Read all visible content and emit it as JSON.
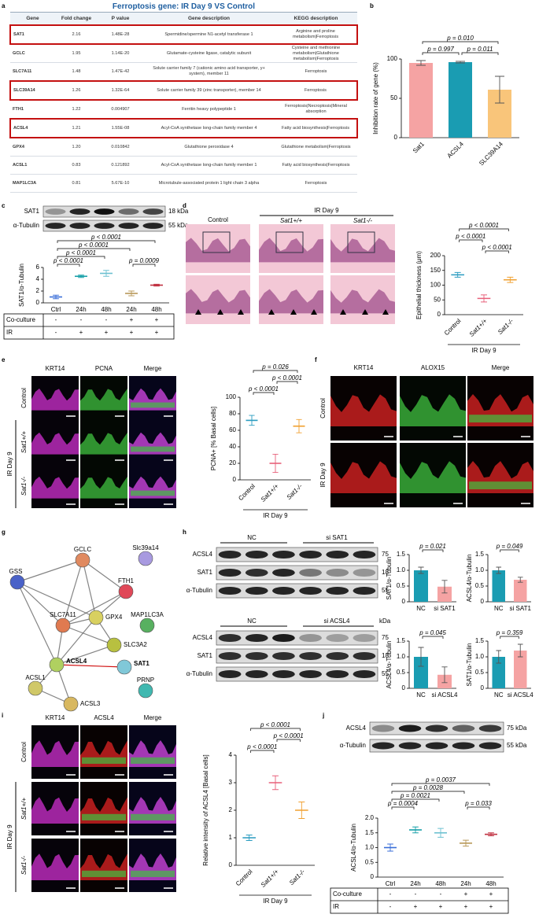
{
  "panel_letters": [
    "a",
    "b",
    "c",
    "d",
    "e",
    "f",
    "g",
    "h",
    "i",
    "j"
  ],
  "table": {
    "title": "Ferroptosis gene: IR Day 9 VS Control",
    "headers": [
      "Gene",
      "Fold change",
      "P value",
      "Gene description",
      "KEGG description"
    ],
    "rows": [
      [
        "SAT1",
        "2.16",
        "1.48E-28",
        "Spermidine/spermine N1-acetyl transferase 1",
        "Arginine and proline metabolism|Ferroptosis"
      ],
      [
        "GCLC",
        "1.95",
        "1.14E-20",
        "Glutamate-cysteine ligase, catalytic subunit",
        "Cysteine and methionine metabolism|Glutathione metabolism|Ferroptosis"
      ],
      [
        "SLC7A11",
        "1.48",
        "1.47E-42",
        "Solute carrier family 7 (cationic amino acid transporter, y+ system), member 11",
        "Ferroptosis"
      ],
      [
        "SLC39A14",
        "1.26",
        "1.32E-64",
        "Solute carrier family 39 (zinc transporter), member 14",
        "Ferroptosis"
      ],
      [
        "FTH1",
        "1.22",
        "0.004907",
        "Ferritin heavy polypeptide 1",
        "Ferroptosis|Necroptosis|Mineral absorption"
      ],
      [
        "ACSL4",
        "1.21",
        "1.55E-08",
        "Acyl-CoA synthetase long-chain family member 4",
        "Fatty acid biosynthesis|Ferroptosis"
      ],
      [
        "GPX4",
        "1.20",
        "0.010842",
        "Glutathione peroxidase 4",
        "Glutathione metabolism|Ferroptosis"
      ],
      [
        "ACSL1",
        "0.83",
        "0.121892",
        "Acyl-CoA synthetase long-chain family member 1",
        "Fatty acid biosynthesis|Ferroptosis"
      ],
      [
        "MAP1LC3A",
        "0.81",
        "5.67E-10",
        "Microtubule-associated protein 1 light chain 3 alpha",
        "Ferroptosis"
      ]
    ]
  },
  "chart_data": [
    {
      "type": "bar",
      "ylabel": "Inhibition rate of gene (%)",
      "categories": [
        "Sat1",
        "ACSL4",
        "SLC39A14"
      ],
      "values": [
        95,
        96,
        61
      ],
      "errors": [
        3,
        1,
        17
      ],
      "colors": [
        "#f5a3a3",
        "#1a9cb2",
        "#f9c57a"
      ],
      "ylim": [
        0,
        100
      ],
      "yticks": [
        0,
        50,
        100
      ],
      "annotations": [
        "p = 0.010",
        "p = 0.997",
        "p = 0.011"
      ]
    },
    {
      "type": "dot",
      "ylabel": "SAT1/α-Tubulin",
      "categories": [
        "Ctrl",
        "24h",
        "48h",
        "24h",
        "48h"
      ],
      "values": [
        1.0,
        4.5,
        5.0,
        1.6,
        3.0
      ],
      "errors": [
        0.3,
        0.2,
        0.5,
        0.4,
        0.15
      ],
      "colors": [
        "#3a6ed8",
        "#18a0a8",
        "#6cc0d0",
        "#b89858",
        "#c03040"
      ],
      "ylim": [
        0,
        6
      ],
      "yticks": [
        0,
        2,
        4,
        6
      ],
      "annotations": [
        "p < 0.0001",
        "p < 0.0001",
        "p < 0.0001",
        "p < 0.0001",
        "p = 0.0009"
      ],
      "conditions": [
        {
          "name": "Co-culture",
          "signs": [
            "-",
            "-",
            "-",
            "+",
            "+"
          ]
        },
        {
          "name": "IR",
          "signs": [
            "-",
            "+",
            "+",
            "+",
            "+"
          ]
        }
      ]
    },
    {
      "type": "dot",
      "ylabel": "Epithelial thickness (μm)",
      "categories": [
        "Control",
        "Sat1+/+",
        "Sat1-/-"
      ],
      "values": [
        135,
        55,
        118
      ],
      "errors": [
        8,
        12,
        9
      ],
      "colors": [
        "#2a9cc0",
        "#e8607a",
        "#f0a030"
      ],
      "ylim": [
        0,
        200
      ],
      "yticks": [
        0,
        50,
        100,
        150,
        200
      ],
      "annotations": [
        "p < 0.0001",
        "p < 0.0001",
        "p < 0.0001"
      ],
      "xgroup": "IR Day 9"
    },
    {
      "type": "dot",
      "ylabel": "PCNA+ [% Basal cells]",
      "categories": [
        "Control",
        "Sat1+/+",
        "Sat1-/-"
      ],
      "values": [
        72,
        20,
        65
      ],
      "errors": [
        6,
        11,
        8
      ],
      "colors": [
        "#2a9cc0",
        "#e8607a",
        "#f0a030"
      ],
      "ylim": [
        0,
        100
      ],
      "yticks": [
        0,
        20,
        40,
        60,
        80,
        100
      ],
      "annotations": [
        "p = 0.026",
        "p < 0.0001",
        "p < 0.0001"
      ],
      "xgroup": "IR Day 9"
    },
    {
      "type": "bar",
      "ylabel": "SAT1/α-Tubulin",
      "categories": [
        "NC",
        "si SAT1"
      ],
      "values": [
        1.0,
        0.48
      ],
      "errors": [
        0.1,
        0.2
      ],
      "colors": [
        "#1a9cb2",
        "#f5a3a3"
      ],
      "ylim": [
        0,
        1.5
      ],
      "yticks": [
        0,
        0.5,
        {
          "value": 1,
          "label": "1.0"
        },
        1.5
      ],
      "annotations": [
        "p = 0.021"
      ]
    },
    {
      "type": "bar",
      "ylabel": "ACSL4/α-Tubulin",
      "categories": [
        "NC",
        "si SAT1"
      ],
      "values": [
        1.0,
        0.7
      ],
      "errors": [
        0.1,
        0.08
      ],
      "colors": [
        "#1a9cb2",
        "#f5a3a3"
      ],
      "ylim": [
        0,
        1.5
      ],
      "yticks": [
        0,
        0.5,
        {
          "value": 1,
          "label": "1.0"
        },
        1.5
      ],
      "annotations": [
        "p = 0.049"
      ]
    },
    {
      "type": "bar",
      "ylabel": "ACSL4/α-Tubulin",
      "categories": [
        "NC",
        "si ACSL4"
      ],
      "values": [
        1.0,
        0.43
      ],
      "errors": [
        0.3,
        0.25
      ],
      "colors": [
        "#1a9cb2",
        "#f5a3a3"
      ],
      "ylim": [
        0,
        1.5
      ],
      "yticks": [
        0,
        0.5,
        {
          "value": 1,
          "label": "1.0"
        },
        1.5
      ],
      "annotations": [
        "p = 0.045"
      ]
    },
    {
      "type": "bar",
      "ylabel": "SAT1/α-Tubulin",
      "categories": [
        "NC",
        "si ACSL4"
      ],
      "values": [
        1.0,
        1.2
      ],
      "errors": [
        0.2,
        0.2
      ],
      "colors": [
        "#1a9cb2",
        "#f5a3a3"
      ],
      "ylim": [
        0,
        1.5
      ],
      "yticks": [
        0,
        0.5,
        {
          "value": 1,
          "label": "1.0"
        },
        1.5
      ],
      "annotations": [
        "p = 0.359"
      ]
    },
    {
      "type": "dot",
      "ylabel": "Relative intensity of ACSL4 [Basal cells]",
      "categories": [
        "Control",
        "Sat1+/+",
        "Sat1-/-"
      ],
      "values": [
        1.0,
        3.0,
        2.0
      ],
      "errors": [
        0.1,
        0.25,
        0.3
      ],
      "colors": [
        "#2a9cc0",
        "#e8607a",
        "#f0a030"
      ],
      "ylim": [
        0,
        4
      ],
      "yticks": [
        0,
        1,
        2,
        3,
        4
      ],
      "annotations": [
        "p < 0.0001",
        "p < 0.0001",
        "p < 0.0001"
      ],
      "xgroup": "IR Day 9"
    },
    {
      "type": "dot",
      "ylabel": "ACSL4/α-Tubulin",
      "categories": [
        "Ctrl",
        "24h",
        "48h",
        "24h",
        "48h"
      ],
      "values": [
        1.0,
        1.6,
        1.5,
        1.15,
        1.45
      ],
      "errors": [
        0.12,
        0.1,
        0.15,
        0.1,
        0.05
      ],
      "colors": [
        "#3a6ed8",
        "#18a0a8",
        "#6cc0d0",
        "#b89858",
        "#c03040"
      ],
      "ylim": [
        0,
        2
      ],
      "yticks": [
        0,
        0.5,
        {
          "value": 1,
          "label": "1.0"
        },
        1.5,
        {
          "value": 2,
          "label": "2.0"
        }
      ],
      "annotations": [
        "p = 0.0037",
        "p = 0.0028",
        "p = 0.0021",
        "p = 0.0004",
        "p = 0.033"
      ],
      "conditions": [
        {
          "name": "Co-culture",
          "signs": [
            "-",
            "-",
            "-",
            "+",
            "+"
          ]
        },
        {
          "name": "IR",
          "signs": [
            "-",
            "+",
            "+",
            "+",
            "+"
          ]
        }
      ]
    }
  ],
  "blots": {
    "c": {
      "bands": [
        "SAT1",
        "α-Tubulin"
      ],
      "sizes": [
        "18 kDa",
        "55 kDa"
      ]
    },
    "h_sat1": {
      "groups": [
        "NC",
        "si SAT1"
      ],
      "bands": [
        "ACSL4",
        "SAT1",
        "α-Tubulin"
      ],
      "sizes": [
        "75",
        "18",
        "55"
      ]
    },
    "h_acsl4": {
      "groups": [
        "NC",
        "si ACSL4"
      ],
      "unit": "kDa",
      "bands": [
        "ACSL4",
        "SAT1",
        "α-Tubulin"
      ],
      "sizes": [
        "75",
        "18",
        "55"
      ]
    },
    "j": {
      "bands": [
        "ACSL4",
        "α-Tubulin"
      ],
      "sizes": [
        "75 kDa",
        "55 kDa"
      ]
    }
  },
  "micrographs": {
    "d": {
      "columns": [
        "Control",
        "Sat1+/+",
        "Sat1-/-"
      ],
      "group": "IR Day 9"
    },
    "e": {
      "columns": [
        "KRT14",
        "PCNA",
        "Merge"
      ],
      "rows": [
        "Control",
        "Sat1+/+",
        "Sat1-/-"
      ],
      "group": "IR Day 9"
    },
    "f": {
      "columns": [
        "KRT14",
        "ALOX15",
        "Merge"
      ],
      "rows": [
        "Control",
        "IR Day 9"
      ]
    },
    "i": {
      "columns": [
        "KRT14",
        "ACSL4",
        "Merge"
      ],
      "rows": [
        "Control",
        "Sat1+/+",
        "Sat1-/-"
      ],
      "group": "IR Day 9"
    }
  },
  "network": {
    "nodes": [
      "GCLC",
      "Slc39a14",
      "GSS",
      "FTH1",
      "SLC7A11",
      "GPX4",
      "MAP1LC3A",
      "SLC3A2",
      "ACSL4",
      "SAT1",
      "ACSL1",
      "ACSL3",
      "PRNP"
    ]
  }
}
